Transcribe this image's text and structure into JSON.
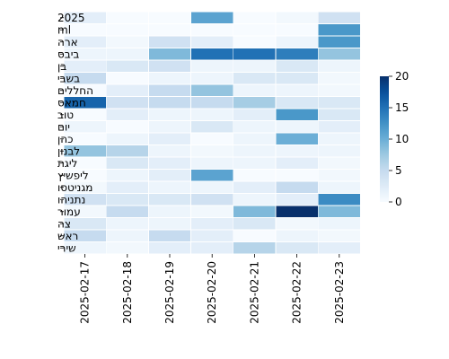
{
  "chart_data": {
    "type": "heatmap",
    "title": "",
    "xlabel": "",
    "ylabel": "",
    "x": [
      "2025-02-17",
      "2025-02-18",
      "2025-02-19",
      "2025-02-20",
      "2025-02-21",
      "2025-02-22",
      "2025-02-23"
    ],
    "y": [
      "2025",
      "ml",
      "ארה",
      "ביבס",
      "בן",
      "בשבי",
      "החללים",
      "חמאס",
      "טוב",
      "יום",
      "כהן",
      "לבנון",
      "ליגת",
      "ליפשיץ",
      "מגניטסו",
      "נתניהו",
      "עמור",
      "צה",
      "ראש",
      "שירי"
    ],
    "values": [
      [
        2,
        0,
        0,
        11,
        0,
        0.5,
        4
      ],
      [
        0,
        0,
        0,
        0,
        0,
        0,
        12
      ],
      [
        2,
        0.5,
        4,
        2,
        0,
        1,
        12
      ],
      [
        1,
        1,
        9,
        15,
        15,
        14,
        8
      ],
      [
        2,
        3,
        4,
        1,
        1,
        3,
        1
      ],
      [
        5,
        0,
        1,
        1,
        3,
        3,
        0.5
      ],
      [
        0,
        2,
        5,
        8,
        1,
        1,
        0.5
      ],
      [
        16,
        4,
        5,
        5,
        7,
        3,
        3
      ],
      [
        0,
        2,
        1,
        1,
        2,
        12,
        3
      ],
      [
        1,
        0,
        1,
        3,
        1,
        1,
        2
      ],
      [
        0,
        1,
        2,
        0,
        1,
        10,
        1
      ],
      [
        8,
        6,
        1,
        0.5,
        1,
        1,
        1
      ],
      [
        0,
        3,
        2,
        1,
        1,
        2,
        0.5
      ],
      [
        0,
        1,
        2,
        11,
        0,
        0,
        0.5
      ],
      [
        0.5,
        2,
        1,
        1,
        2,
        5,
        1
      ],
      [
        4,
        3,
        3,
        4,
        1,
        2,
        13
      ],
      [
        0.5,
        5,
        1,
        0.5,
        9,
        20,
        9
      ],
      [
        3,
        1,
        1,
        2,
        3,
        0.5,
        1
      ],
      [
        5,
        1,
        5,
        2,
        0,
        1,
        0.5
      ],
      [
        1,
        0.5,
        2,
        2,
        6,
        3,
        2
      ]
    ],
    "colorbar": {
      "min": 0,
      "max": 20,
      "ticks": [
        0,
        5,
        10,
        15,
        20
      ],
      "colormap": "Blues"
    },
    "grid": false,
    "cell_border_color": "#ffffff",
    "legend": "right"
  }
}
